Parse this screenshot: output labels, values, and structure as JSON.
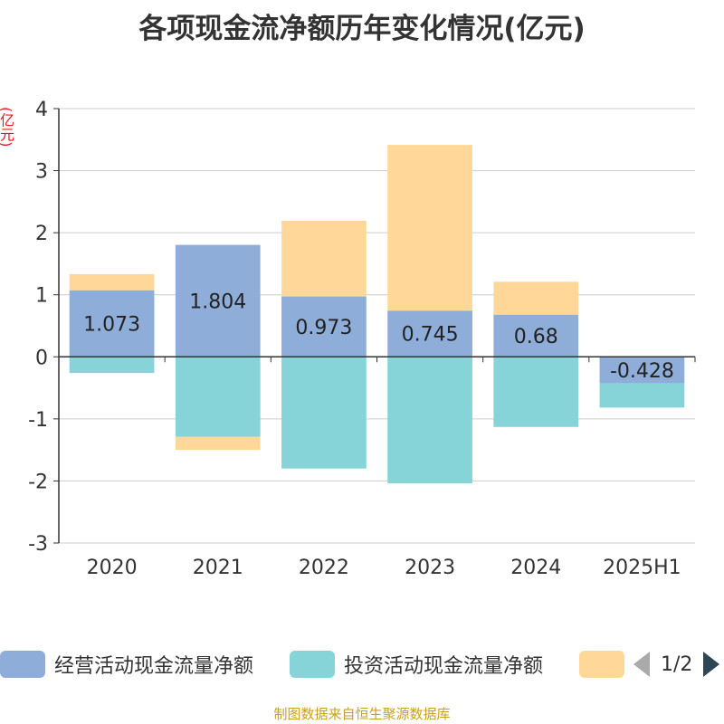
{
  "title": "各项现金流净额历年变化情况(亿元)",
  "unit_label": "(亿元)",
  "source": "制图数据来自恒生聚源数据库",
  "pager": {
    "text": "1/2"
  },
  "colors": {
    "operating": "#8eaed9",
    "investing": "#86d4d8",
    "financing": "#ffd899",
    "axis": "#333333",
    "grid": "#cccccc"
  },
  "chart_data": {
    "type": "bar",
    "stacked": true,
    "categories": [
      "2020",
      "2021",
      "2022",
      "2023",
      "2024",
      "2025H1"
    ],
    "ylim": [
      -3,
      4
    ],
    "yticks": [
      4,
      3,
      2,
      1,
      0,
      -1,
      -2,
      -3
    ],
    "grid": true,
    "legend_position": "bottom",
    "series": [
      {
        "name": "经营活动现金流量净额",
        "color": "#8eaed9",
        "values": [
          1.073,
          1.804,
          0.973,
          0.745,
          0.68,
          -0.428
        ],
        "labels": [
          "1.073",
          "1.804",
          "0.973",
          "0.745",
          "0.68",
          "-0.428"
        ]
      },
      {
        "name": "投资活动现金流量净额",
        "color": "#86d4d8",
        "values": [
          -0.26,
          -1.29,
          -1.8,
          -2.04,
          -1.13,
          -0.39
        ]
      },
      {
        "name": "",
        "color": "#ffd899",
        "values": [
          0.26,
          -0.21,
          1.22,
          2.67,
          0.53,
          0
        ]
      }
    ]
  }
}
